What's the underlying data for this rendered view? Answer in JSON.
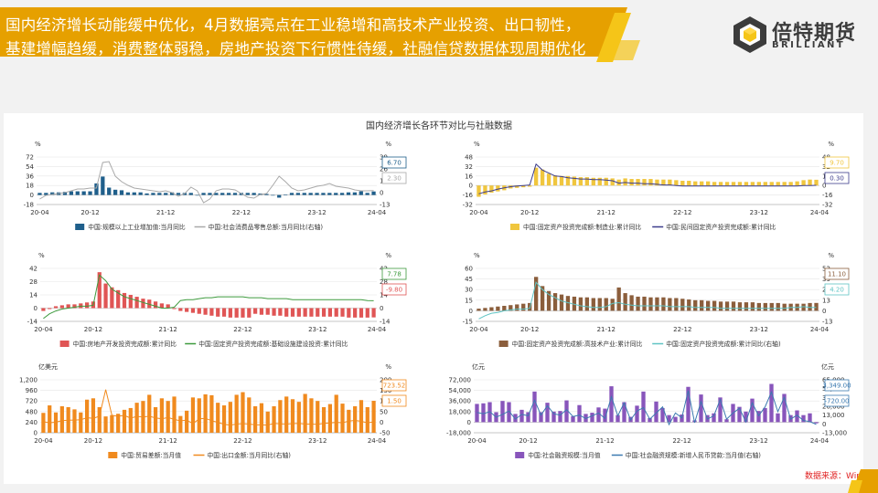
{
  "headline": {
    "line1": "国内经济增长动能缓中优化，4月数据亮点在工业稳增和高技术产业投资、出口韧性，",
    "line2": "基建增幅趋缓，消费整体弱稳，房地产投资下行惯性待缓，社融信贷数据体现周期优化"
  },
  "logo": {
    "cn": "倍特期货",
    "en": "BRILLIANT"
  },
  "colors": {
    "banner": "#e6a000",
    "accent_yellow": "#f5c518",
    "logo_dark": "#3c3c3c"
  },
  "main_title": "国内经济增长各环节对比与社融数据",
  "source": "数据来源：Wind",
  "chart_data": [
    {
      "type": "bar",
      "unit_left": "%",
      "unit_right": "%",
      "ylim": [
        -18,
        72
      ],
      "yticks": [
        "72",
        "54",
        "36",
        "18",
        "0",
        "-18"
      ],
      "y2lim": [
        -13,
        39
      ],
      "y2ticks": [
        "39",
        "26",
        "13",
        "0",
        "-13"
      ],
      "xticks": [
        "20-04",
        "20-12",
        "21-12",
        "22-12",
        "23-12",
        "24-04"
      ],
      "series": [
        {
          "name": "中国:规模以上工业增加值:当月同比",
          "kind": "bar",
          "axis": "left",
          "color": "#1f5f8b",
          "values": [
            4,
            4,
            5,
            5,
            6,
            7,
            7,
            7,
            7,
            22,
            35,
            14,
            10,
            9,
            5,
            5,
            5,
            3,
            4,
            4,
            4,
            5,
            4,
            4,
            4,
            -1,
            4,
            4,
            4,
            4,
            4,
            4,
            4,
            4,
            4,
            3,
            2,
            0,
            -5,
            1,
            4,
            4,
            4,
            4,
            4,
            4,
            4,
            4,
            4,
            5,
            5,
            7,
            4,
            6.7
          ]
        },
        {
          "name": "中国:社会消费品零售总额:当月同比(右轴)",
          "kind": "line",
          "axis": "right",
          "color": "#a9a9a9",
          "values": [
            -7,
            -3,
            -2,
            -1,
            0,
            2,
            4,
            4,
            5,
            5,
            33,
            34,
            18,
            12,
            8,
            5,
            4,
            3,
            2,
            1,
            2,
            0,
            -4,
            -1,
            6,
            2,
            -11,
            -7,
            2,
            4,
            4,
            3,
            -1,
            -5,
            -6,
            -2,
            -1,
            8,
            18,
            12,
            5,
            2,
            3,
            5,
            7,
            8,
            10,
            7,
            6,
            5,
            3,
            2,
            2,
            2.3
          ]
        }
      ],
      "callouts": [
        {
          "value": "6.70",
          "series": 0
        },
        {
          "value": "2.30",
          "series": 1
        }
      ]
    },
    {
      "type": "bar",
      "unit_left": "%",
      "unit_right": "%",
      "ylim": [
        -32,
        48
      ],
      "yticks": [
        "48",
        "32",
        "16",
        "0",
        "-16",
        "-32"
      ],
      "y2lim": [
        -32,
        48
      ],
      "y2ticks": [
        "48",
        "32",
        "16",
        "0",
        "-16",
        "-32"
      ],
      "xticks": [
        "20-04",
        "20-12",
        "21-12",
        "22-12",
        "23-12",
        "24-04"
      ],
      "series": [
        {
          "name": "中国:固定资产投资完成额:制造业:累计同比",
          "kind": "bar",
          "axis": "left",
          "color": "#f0c63e",
          "values": [
            -19,
            -15,
            -12,
            -10,
            -8,
            -5,
            -4,
            -3,
            -2,
            30,
            27,
            20,
            17,
            16,
            16,
            15,
            14,
            14,
            13,
            13,
            13,
            12,
            10,
            12,
            11,
            11,
            11,
            11,
            10,
            10,
            10,
            9,
            8,
            8,
            7,
            7,
            7,
            6,
            6,
            6,
            6,
            6,
            6,
            6,
            6,
            6,
            6,
            6,
            6,
            6,
            7,
            9,
            10,
            9.7
          ]
        },
        {
          "name": "中国:民间固定资产投资完成额:累计同比",
          "kind": "line",
          "axis": "left",
          "color": "#3c3c8c",
          "values": [
            -14,
            -11,
            -9,
            -6,
            -4,
            -2,
            -1,
            0,
            1,
            36,
            26,
            21,
            16,
            15,
            13,
            12,
            11,
            11,
            10,
            10,
            9,
            8,
            4,
            5,
            4,
            4,
            3,
            3,
            2,
            1,
            1,
            0,
            -1,
            -1,
            -1,
            -1,
            -1,
            -1,
            -1,
            -1,
            -1,
            -1,
            -1,
            -1,
            -1,
            -1,
            -1,
            -1,
            -1,
            -1,
            -1,
            0,
            0,
            0.3
          ]
        }
      ],
      "callouts": [
        {
          "value": "9.70",
          "series": 0
        },
        {
          "value": "0.30",
          "series": 1
        }
      ]
    },
    {
      "type": "bar",
      "unit_left": "%",
      "unit_right": "%",
      "ylim": [
        -14,
        42
      ],
      "yticks": [
        "42",
        "28",
        "14",
        "0",
        "-14"
      ],
      "y2lim": [
        -14,
        42
      ],
      "y2ticks": [
        "42",
        "28",
        "14",
        "0",
        "-14"
      ],
      "xticks": [
        "20-04",
        "20-12",
        "21-12",
        "22-12",
        "23-12",
        "24-04"
      ],
      "series": [
        {
          "name": "中国:房地产开发投资完成额:累计同比",
          "kind": "bar",
          "axis": "left",
          "color": "#e05555",
          "values": [
            -3,
            -1,
            2,
            3,
            4,
            4,
            5,
            6,
            7,
            38,
            26,
            22,
            19,
            16,
            14,
            12,
            10,
            9,
            7,
            5,
            4,
            -1,
            -3,
            -4,
            -5,
            -6,
            -7,
            -8,
            -9,
            -9,
            -10,
            -10,
            -10,
            -10,
            -6,
            -7,
            -7,
            -8,
            -8,
            -9,
            -9,
            -9,
            -9,
            -9,
            -9,
            -9,
            -9,
            -9,
            -9,
            -10,
            -10,
            -10,
            -10,
            -9.8
          ]
        },
        {
          "name": "中国:固定资产投资完成额:基础设施建设投资:累计同比",
          "kind": "line",
          "axis": "left",
          "color": "#3d9a3d",
          "values": [
            -11,
            -6,
            -3,
            -1,
            0,
            1,
            2,
            2,
            3,
            35,
            29,
            20,
            16,
            12,
            10,
            8,
            6,
            4,
            2,
            0,
            0,
            1,
            8,
            9,
            9,
            10,
            11,
            11,
            12,
            12,
            12,
            12,
            12,
            11,
            11,
            11,
            10,
            10,
            10,
            10,
            9,
            9,
            9,
            9,
            9,
            9,
            9,
            9,
            9,
            9,
            9,
            9,
            8,
            7.78
          ]
        }
      ],
      "callouts": [
        {
          "value": "7.78",
          "series": 1
        },
        {
          "value": "-9.80",
          "series": 0
        }
      ]
    },
    {
      "type": "bar",
      "unit_left": "%",
      "unit_right": "%",
      "ylim": [
        -15,
        60
      ],
      "yticks": [
        "60",
        "45",
        "30",
        "15",
        "0",
        "-15"
      ],
      "y2lim": [
        -13,
        52
      ],
      "y2ticks": [
        "52",
        "39",
        "26",
        "13",
        "0",
        "-13"
      ],
      "xticks": [
        "20-04",
        "20-12",
        "21-12",
        "22-12",
        "23-12",
        "24-04"
      ],
      "series": [
        {
          "name": "中国:固定资产投资完成额:高技术产业:累计同比",
          "kind": "bar",
          "axis": "left",
          "color": "#8b5e3c",
          "values": [
            3,
            4,
            5,
            6,
            7,
            8,
            9,
            10,
            11,
            48,
            35,
            28,
            25,
            23,
            21,
            20,
            19,
            19,
            18,
            18,
            18,
            17,
            33,
            25,
            22,
            20,
            20,
            19,
            19,
            19,
            18,
            18,
            17,
            16,
            15,
            15,
            14,
            14,
            13,
            13,
            13,
            12,
            12,
            12,
            11,
            11,
            11,
            11,
            10,
            10,
            10,
            10,
            11,
            11.1
          ]
        },
        {
          "name": "中国:固定资产投资完成额:累计同比(右轴)",
          "kind": "line",
          "axis": "right",
          "color": "#5fc4c4",
          "values": [
            -10,
            -6,
            -3,
            -2,
            0,
            1,
            2,
            2,
            3,
            35,
            26,
            20,
            16,
            12,
            10,
            8,
            6,
            5,
            4,
            4,
            5,
            9,
            10,
            8,
            7,
            6,
            6,
            6,
            6,
            6,
            5,
            5,
            5,
            5,
            4,
            4,
            4,
            4,
            3,
            3,
            3,
            3,
            3,
            3,
            3,
            3,
            3,
            3,
            3,
            4,
            4,
            5,
            4,
            4.2
          ]
        }
      ],
      "callouts": [
        {
          "value": "11.10",
          "series": 0
        },
        {
          "value": "4.20",
          "series": 1
        }
      ]
    },
    {
      "type": "bar",
      "unit_left": "亿美元",
      "unit_right": "%",
      "ylim": [
        0,
        1200
      ],
      "yticks": [
        "1,200",
        "960",
        "720",
        "480",
        "240",
        "0"
      ],
      "y2lim": [
        -50,
        200
      ],
      "y2ticks": [
        "200",
        "150",
        "100",
        "50",
        "0",
        "-50"
      ],
      "xticks": [
        "20-04",
        "20-12",
        "21-12",
        "22-12",
        "23-12",
        "24-04"
      ],
      "series": [
        {
          "name": "中国:贸易差额:当月值",
          "kind": "bar",
          "axis": "left",
          "color": "#f08a1e",
          "values": [
            450,
            620,
            460,
            600,
            580,
            530,
            460,
            750,
            780,
            580,
            370,
            400,
            430,
            520,
            560,
            680,
            720,
            860,
            580,
            780,
            720,
            820,
            380,
            500,
            800,
            780,
            870,
            850,
            680,
            620,
            700,
            860,
            920,
            800,
            600,
            670,
            480,
            600,
            740,
            820,
            760,
            700,
            880,
            780,
            720,
            580,
            650,
            860,
            660,
            520,
            600,
            740,
            580,
            723.52
          ]
        },
        {
          "name": "中国:出口金额:当月同比(右轴)",
          "kind": "line",
          "axis": "right",
          "color": "#f08a1e",
          "values": [
            2,
            -3,
            0,
            7,
            9,
            10,
            11,
            21,
            18,
            28,
            154,
            32,
            28,
            32,
            19,
            27,
            24,
            28,
            20,
            16,
            22,
            13,
            6,
            10,
            -7,
            16,
            18,
            7,
            -1,
            -10,
            -14,
            -9,
            -7,
            -9,
            -12,
            -13,
            -14,
            -6,
            -8,
            -9,
            -7,
            -6,
            -9,
            -9,
            -10,
            -6,
            -4,
            -1,
            -3,
            5,
            8,
            4,
            -3,
            1.5
          ]
        }
      ],
      "callouts": [
        {
          "value": "723.52",
          "series": 0
        },
        {
          "value": "1.50",
          "series": 1
        }
      ]
    },
    {
      "type": "bar",
      "unit_left": "亿元",
      "unit_right": "亿元",
      "ylim": [
        -18000,
        72000
      ],
      "yticks": [
        "72,000",
        "54,000",
        "36,000",
        "18,000",
        "0",
        "-18,000"
      ],
      "y2lim": [
        -13000,
        65000
      ],
      "y2ticks": [
        "65,000",
        "52,000",
        "39,000",
        "26,000",
        "13,000",
        "0",
        "-13,000"
      ],
      "xticks": [
        "20-04",
        "20-12",
        "21-12",
        "22-12",
        "23-12",
        "24-04"
      ],
      "series": [
        {
          "name": "中国:社会融资规模:当月值",
          "kind": "bar",
          "axis": "left",
          "color": "#8855bb",
          "values": [
            31000,
            32000,
            34000,
            17000,
            36000,
            34000,
            14000,
            21000,
            17000,
            52000,
            17000,
            33000,
            18000,
            19000,
            37000,
            10000,
            29000,
            14000,
            16000,
            25000,
            23000,
            61000,
            12000,
            34000,
            9000,
            28000,
            52000,
            7000,
            35000,
            24000,
            12000,
            9000,
            13000,
            60000,
            3000,
            47000,
            12000,
            15000,
            42000,
            5000,
            31000,
            26000,
            18000,
            40000,
            19000,
            24000,
            65000,
            15000,
            48000,
            12000,
            20000,
            12000,
            15000,
            -2000
          ]
        },
        {
          "name": "中国:社会融资规模:新增人民币贷款:当月值(右轴)",
          "kind": "line",
          "axis": "right",
          "color": "#3c7ab0",
          "values": [
            17000,
            15000,
            18000,
            10000,
            14000,
            19000,
            7000,
            14000,
            12000,
            35000,
            13000,
            27000,
            15000,
            13000,
            21000,
            11000,
            13000,
            8000,
            12000,
            16000,
            8000,
            40000,
            12000,
            31000,
            6000,
            19000,
            24000,
            7000,
            16000,
            25000,
            -1000,
            16000,
            9000,
            49000,
            1800,
            33000,
            7000,
            12000,
            36000,
            7000,
            16000,
            23000,
            3000,
            31000,
            12000,
            25000,
            47000,
            18000,
            39000,
            7000,
            13000,
            5000,
            3349,
            -720
          ]
        }
      ],
      "callouts": [
        {
          "value": "3,349.00",
          "series": 1
        },
        {
          "value": "-720.00",
          "series": 1
        }
      ]
    }
  ]
}
